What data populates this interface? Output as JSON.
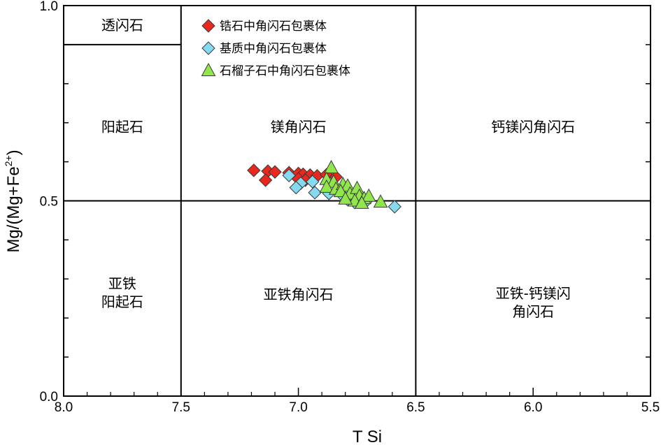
{
  "chart_data": {
    "type": "scatter",
    "title": "",
    "xlabel": "T Si",
    "ylabel": "Mg/(Mg+Fe",
    "ylabel_sup": "2+",
    "ylabel_tail": ")",
    "xlim": [
      8.0,
      5.5
    ],
    "ylim": [
      0.0,
      1.0
    ],
    "x_reversed": true,
    "grid": false,
    "legend_position": "top-center",
    "x_ticks": [
      {
        "value": 8.0,
        "label": "8.0"
      },
      {
        "value": 7.5,
        "label": "7.5"
      },
      {
        "value": 7.0,
        "label": "7.0"
      },
      {
        "value": 6.5,
        "label": "6.5"
      },
      {
        "value": 6.0,
        "label": "6.0"
      },
      {
        "value": 5.5,
        "label": "5.5"
      }
    ],
    "y_ticks": [
      {
        "value": 0.0,
        "label": "0.0"
      },
      {
        "value": 0.5,
        "label": "0.5"
      },
      {
        "value": 1.0,
        "label": "1.0"
      }
    ],
    "fields": [
      {
        "lines": [
          "透闪石"
        ],
        "x": 7.75,
        "y": 0.95
      },
      {
        "lines": [
          "阳起石"
        ],
        "x": 7.75,
        "y": 0.69
      },
      {
        "lines": [
          "镁角闪石"
        ],
        "x": 7.0,
        "y": 0.69
      },
      {
        "lines": [
          "钙镁闪角闪石"
        ],
        "x": 6.0,
        "y": 0.69
      },
      {
        "lines": [
          "亚铁",
          "阳起石"
        ],
        "x": 7.75,
        "y": 0.265
      },
      {
        "lines": [
          "亚铁角闪石"
        ],
        "x": 7.0,
        "y": 0.26
      },
      {
        "lines": [
          "亚铁-钙镁闪",
          "角闪石"
        ],
        "x": 6.0,
        "y": 0.24
      }
    ],
    "series": [
      {
        "name": "锆石中角闪石包裹体",
        "marker": "diamond",
        "color": "#e8281e",
        "points": [
          {
            "x": 7.19,
            "y": 0.578
          },
          {
            "x": 7.13,
            "y": 0.576
          },
          {
            "x": 7.1,
            "y": 0.574
          },
          {
            "x": 7.14,
            "y": 0.553
          },
          {
            "x": 7.04,
            "y": 0.572
          },
          {
            "x": 7.0,
            "y": 0.57
          },
          {
            "x": 6.98,
            "y": 0.568
          },
          {
            "x": 6.95,
            "y": 0.566
          },
          {
            "x": 6.92,
            "y": 0.564
          },
          {
            "x": 6.88,
            "y": 0.567
          },
          {
            "x": 6.84,
            "y": 0.561
          },
          {
            "x": 7.0,
            "y": 0.556
          },
          {
            "x": 6.97,
            "y": 0.553
          }
        ]
      },
      {
        "name": "基质中角闪石包裹体",
        "marker": "diamond",
        "color": "#86daf0",
        "points": [
          {
            "x": 7.04,
            "y": 0.565
          },
          {
            "x": 6.99,
            "y": 0.545
          },
          {
            "x": 6.94,
            "y": 0.549
          },
          {
            "x": 7.01,
            "y": 0.534
          },
          {
            "x": 6.93,
            "y": 0.521
          },
          {
            "x": 6.87,
            "y": 0.519
          },
          {
            "x": 6.81,
            "y": 0.513
          },
          {
            "x": 6.79,
            "y": 0.503
          },
          {
            "x": 6.76,
            "y": 0.496
          },
          {
            "x": 6.73,
            "y": 0.498
          },
          {
            "x": 6.71,
            "y": 0.5
          },
          {
            "x": 6.59,
            "y": 0.485
          }
        ]
      },
      {
        "name": "石榴子石中角闪石包裹体",
        "marker": "triangle",
        "color": "#90e64a",
        "points": [
          {
            "x": 6.86,
            "y": 0.585
          },
          {
            "x": 6.88,
            "y": 0.555
          },
          {
            "x": 6.85,
            "y": 0.548
          },
          {
            "x": 6.88,
            "y": 0.535
          },
          {
            "x": 6.84,
            "y": 0.53
          },
          {
            "x": 6.81,
            "y": 0.542
          },
          {
            "x": 6.79,
            "y": 0.538
          },
          {
            "x": 6.82,
            "y": 0.524
          },
          {
            "x": 6.78,
            "y": 0.518
          },
          {
            "x": 6.75,
            "y": 0.532
          },
          {
            "x": 6.74,
            "y": 0.512
          },
          {
            "x": 6.76,
            "y": 0.5
          },
          {
            "x": 6.72,
            "y": 0.506
          },
          {
            "x": 6.7,
            "y": 0.512
          },
          {
            "x": 6.65,
            "y": 0.497
          },
          {
            "x": 6.8,
            "y": 0.505
          },
          {
            "x": 6.73,
            "y": 0.494
          }
        ]
      }
    ]
  }
}
